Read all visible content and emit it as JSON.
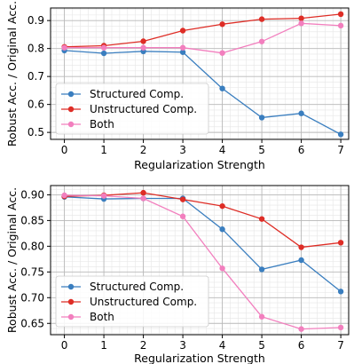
{
  "chart_data": [
    {
      "type": "line",
      "xlabel": "Regularization Strength",
      "ylabel": "Robust Acc. / Original Acc.",
      "x": [
        0,
        1,
        2,
        3,
        4,
        5,
        6,
        7
      ],
      "xlim": [
        -0.35,
        7.2
      ],
      "ylim": [
        0.475,
        0.945
      ],
      "yticks": [
        0.5,
        0.6,
        0.7,
        0.8,
        0.9
      ],
      "ytick_labels": [
        "0.5",
        "0.6",
        "0.7",
        "0.8",
        "0.9"
      ],
      "xticks": [
        0,
        1,
        2,
        3,
        4,
        5,
        6,
        7
      ],
      "xtick_labels": [
        "0",
        "1",
        "2",
        "3",
        "4",
        "5",
        "6",
        "7"
      ],
      "grid": true,
      "legend_position": "lower-left",
      "series": [
        {
          "name": "Structured Comp.",
          "color": "#3a7ebf",
          "values": [
            0.793,
            0.783,
            0.79,
            0.787,
            0.657,
            0.553,
            0.568,
            0.493
          ]
        },
        {
          "name": "Unstructured Comp.",
          "color": "#de2d26",
          "values": [
            0.806,
            0.81,
            0.826,
            0.864,
            0.887,
            0.905,
            0.908,
            0.923
          ]
        },
        {
          "name": "Both",
          "color": "#f27fbe",
          "values": [
            0.803,
            0.803,
            0.803,
            0.803,
            0.784,
            0.825,
            0.89,
            0.882
          ]
        }
      ]
    },
    {
      "type": "line",
      "xlabel": "Regularization Strength",
      "ylabel": "Robust Acc. / Original Acc.",
      "x": [
        0,
        1,
        2,
        3,
        4,
        5,
        6,
        7
      ],
      "xlim": [
        -0.35,
        7.2
      ],
      "ylim": [
        0.628,
        0.918
      ],
      "yticks": [
        0.65,
        0.7,
        0.75,
        0.8,
        0.85,
        0.9
      ],
      "ytick_labels": [
        "0.65",
        "0.70",
        "0.75",
        "0.80",
        "0.85",
        "0.90"
      ],
      "xticks": [
        0,
        1,
        2,
        3,
        4,
        5,
        6,
        7
      ],
      "xtick_labels": [
        "0",
        "1",
        "2",
        "3",
        "4",
        "5",
        "6",
        "7"
      ],
      "grid": true,
      "legend_position": "lower-left",
      "series": [
        {
          "name": "Structured Comp.",
          "color": "#3a7ebf",
          "values": [
            0.896,
            0.892,
            0.893,
            0.893,
            0.833,
            0.755,
            0.773,
            0.712
          ]
        },
        {
          "name": "Unstructured Comp.",
          "color": "#de2d26",
          "values": [
            0.897,
            0.899,
            0.904,
            0.891,
            0.878,
            0.853,
            0.798,
            0.807
          ]
        },
        {
          "name": "Both",
          "color": "#f27fbe",
          "values": [
            0.899,
            0.898,
            0.893,
            0.858,
            0.757,
            0.663,
            0.639,
            0.642
          ]
        }
      ]
    }
  ]
}
